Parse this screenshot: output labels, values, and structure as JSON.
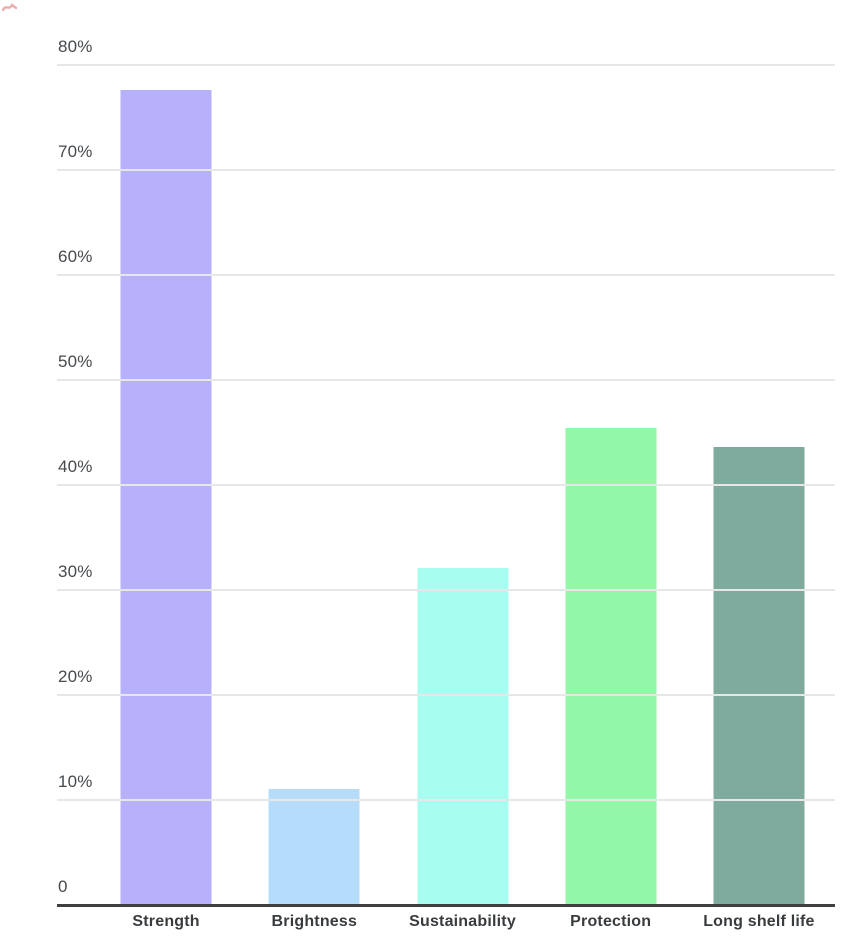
{
  "chart_data": {
    "type": "bar",
    "title": "",
    "xlabel": "",
    "ylabel": "",
    "categories": [
      "Strength",
      "Brightness",
      "Sustainability",
      "Protection",
      "Long shelf life"
    ],
    "values": [
      77.5,
      11,
      32,
      45.3,
      43.5
    ],
    "value_unit": "%",
    "bar_colors": [
      "#b7b1fc",
      "#b5dcfa",
      "#a7fdf0",
      "#92f7a6",
      "#7fab9e"
    ],
    "ylim": [
      0,
      80
    ],
    "yticks": [
      {
        "value": 80,
        "label": "80%"
      },
      {
        "value": 70,
        "label": "70%"
      },
      {
        "value": 60,
        "label": "60%"
      },
      {
        "value": 50,
        "label": "50%"
      },
      {
        "value": 40,
        "label": "40%"
      },
      {
        "value": 30,
        "label": "30%"
      },
      {
        "value": 20,
        "label": "20%"
      },
      {
        "value": 10,
        "label": "10%"
      },
      {
        "value": 0,
        "label": "0"
      }
    ],
    "grid": true,
    "legend": "none",
    "colors": {
      "background": "#ffffff",
      "gridline": "#e7e7e7",
      "baseline": "#3f3f3f",
      "tick_text": "#46494d",
      "category_text": "#393c3f",
      "corner_mark": "#dd6b6b"
    }
  }
}
